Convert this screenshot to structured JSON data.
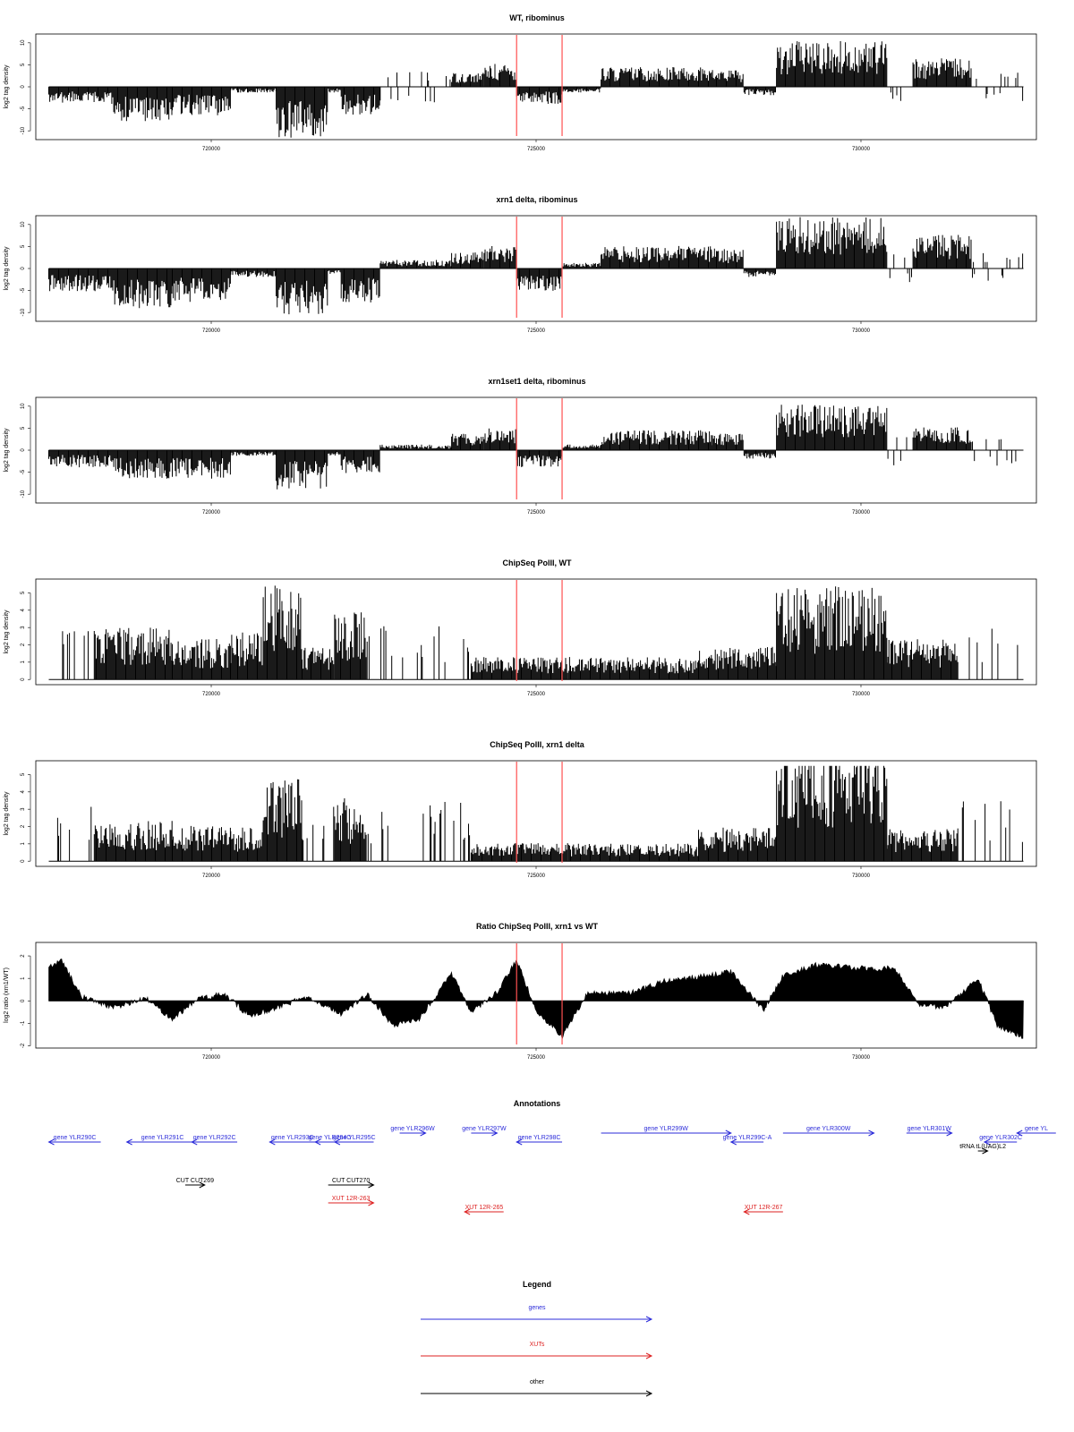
{
  "chart_data": [
    {
      "type": "bar",
      "title": "WT, ribominus",
      "ylabel": "log2 tag density",
      "xlim": [
        717300,
        732700
      ],
      "ylim": [
        -12,
        12
      ],
      "xticks": [
        720000,
        725000,
        730000
      ],
      "yticks": [
        -10,
        -5,
        0,
        5,
        10
      ],
      "vlines": [
        724700,
        725400
      ],
      "segments": [
        {
          "x0": 717500,
          "x1": 718500,
          "v": -3
        },
        {
          "x0": 718500,
          "x1": 719400,
          "v": -6
        },
        {
          "x0": 719400,
          "x1": 720300,
          "v": -5
        },
        {
          "x0": 720300,
          "x1": 721000,
          "v": -1
        },
        {
          "x0": 721000,
          "x1": 721800,
          "v": -9
        },
        {
          "x0": 721800,
          "x1": 722000,
          "v": -1
        },
        {
          "x0": 722000,
          "x1": 722600,
          "v": -5
        },
        {
          "x0": 722600,
          "x1": 723700,
          "v": -0.5
        },
        {
          "x0": 723700,
          "x1": 724200,
          "v": 2.5
        },
        {
          "x0": 724200,
          "x1": 724700,
          "v": 4
        },
        {
          "x0": 724700,
          "x1": 725400,
          "v": -3
        },
        {
          "x0": 725400,
          "x1": 726000,
          "v": -1
        },
        {
          "x0": 726000,
          "x1": 727700,
          "v": 3.5
        },
        {
          "x0": 727700,
          "x1": 728200,
          "v": 3
        },
        {
          "x0": 728200,
          "x1": 728700,
          "v": -1.5
        },
        {
          "x0": 728700,
          "x1": 730400,
          "v": 8
        },
        {
          "x0": 730400,
          "x1": 730800,
          "v": 0
        },
        {
          "x0": 730800,
          "x1": 731700,
          "v": 5
        },
        {
          "x0": 731700,
          "x1": 732500,
          "v": 0
        }
      ]
    },
    {
      "type": "bar",
      "title": "xrn1 delta, ribominus",
      "ylabel": "log2 tag density",
      "xlim": [
        717300,
        732700
      ],
      "ylim": [
        -12,
        12
      ],
      "xticks": [
        720000,
        725000,
        730000
      ],
      "yticks": [
        -10,
        -5,
        0,
        5,
        10
      ],
      "vlines": [
        724700,
        725400
      ],
      "segments": [
        {
          "x0": 717500,
          "x1": 718500,
          "v": -4
        },
        {
          "x0": 718500,
          "x1": 719400,
          "v": -7
        },
        {
          "x0": 719400,
          "x1": 720300,
          "v": -6
        },
        {
          "x0": 720300,
          "x1": 721000,
          "v": -1.5
        },
        {
          "x0": 721000,
          "x1": 721800,
          "v": -8
        },
        {
          "x0": 721800,
          "x1": 722000,
          "v": -1
        },
        {
          "x0": 722000,
          "x1": 722600,
          "v": -6
        },
        {
          "x0": 722600,
          "x1": 723700,
          "v": 1.5
        },
        {
          "x0": 723700,
          "x1": 724200,
          "v": 3
        },
        {
          "x0": 724200,
          "x1": 724700,
          "v": 4
        },
        {
          "x0": 724700,
          "x1": 725400,
          "v": -4
        },
        {
          "x0": 725400,
          "x1": 726000,
          "v": 1
        },
        {
          "x0": 726000,
          "x1": 727700,
          "v": 4
        },
        {
          "x0": 727700,
          "x1": 728200,
          "v": 3.5
        },
        {
          "x0": 728200,
          "x1": 728700,
          "v": -1.5
        },
        {
          "x0": 728700,
          "x1": 730400,
          "v": 9
        },
        {
          "x0": 730400,
          "x1": 730800,
          "v": 0
        },
        {
          "x0": 730800,
          "x1": 731700,
          "v": 6
        },
        {
          "x0": 731700,
          "x1": 732500,
          "v": 0
        }
      ]
    },
    {
      "type": "bar",
      "title": "xrn1set1 delta, ribominus",
      "ylabel": "log2 tag density",
      "xlim": [
        717300,
        732700
      ],
      "ylim": [
        -12,
        12
      ],
      "xticks": [
        720000,
        725000,
        730000
      ],
      "yticks": [
        -10,
        -5,
        0,
        5,
        10
      ],
      "vlines": [
        724700,
        725400
      ],
      "segments": [
        {
          "x0": 717500,
          "x1": 718500,
          "v": -3
        },
        {
          "x0": 718500,
          "x1": 719400,
          "v": -5
        },
        {
          "x0": 719400,
          "x1": 720300,
          "v": -5
        },
        {
          "x0": 720300,
          "x1": 721000,
          "v": -1
        },
        {
          "x0": 721000,
          "x1": 721800,
          "v": -7
        },
        {
          "x0": 721800,
          "x1": 722000,
          "v": -1
        },
        {
          "x0": 722000,
          "x1": 722600,
          "v": -4
        },
        {
          "x0": 722600,
          "x1": 723700,
          "v": 1
        },
        {
          "x0": 723700,
          "x1": 724200,
          "v": 3
        },
        {
          "x0": 724200,
          "x1": 724700,
          "v": 4
        },
        {
          "x0": 724700,
          "x1": 725400,
          "v": -3
        },
        {
          "x0": 725400,
          "x1": 726000,
          "v": 1
        },
        {
          "x0": 726000,
          "x1": 727700,
          "v": 3.5
        },
        {
          "x0": 727700,
          "x1": 728200,
          "v": 3
        },
        {
          "x0": 728200,
          "x1": 728700,
          "v": -1.5
        },
        {
          "x0": 728700,
          "x1": 730400,
          "v": 8
        },
        {
          "x0": 730400,
          "x1": 730800,
          "v": 0
        },
        {
          "x0": 730800,
          "x1": 731700,
          "v": 4
        },
        {
          "x0": 731700,
          "x1": 732500,
          "v": 0
        }
      ]
    },
    {
      "type": "bar",
      "title": "ChipSeq PolII, WT",
      "ylabel": "log2 tag density",
      "xlim": [
        717300,
        732700
      ],
      "ylim": [
        -0.3,
        5.8
      ],
      "xticks": [
        720000,
        725000,
        730000
      ],
      "yticks": [
        0,
        1,
        2,
        3,
        4,
        5
      ],
      "vlines": [
        724700,
        725400
      ],
      "segments": [
        {
          "x0": 717500,
          "x1": 718200,
          "v": 0.5
        },
        {
          "x0": 718200,
          "x1": 719400,
          "v": 2.3
        },
        {
          "x0": 719400,
          "x1": 720300,
          "v": 1.8
        },
        {
          "x0": 720300,
          "x1": 720800,
          "v": 2.1
        },
        {
          "x0": 720800,
          "x1": 721400,
          "v": 4.2
        },
        {
          "x0": 721400,
          "x1": 721900,
          "v": 1.5
        },
        {
          "x0": 721900,
          "x1": 722400,
          "v": 3
        },
        {
          "x0": 722400,
          "x1": 724000,
          "v": 0.3
        },
        {
          "x0": 724000,
          "x1": 725500,
          "v": 1
        },
        {
          "x0": 725500,
          "x1": 727500,
          "v": 1
        },
        {
          "x0": 727500,
          "x1": 728700,
          "v": 1.5
        },
        {
          "x0": 728700,
          "x1": 730400,
          "v": 4.2
        },
        {
          "x0": 730400,
          "x1": 731500,
          "v": 1.8
        },
        {
          "x0": 731500,
          "x1": 732500,
          "v": 0.5
        }
      ]
    },
    {
      "type": "bar",
      "title": "ChipSeq PolII, xrn1 delta",
      "ylabel": "log2 tag density",
      "xlim": [
        717300,
        732700
      ],
      "ylim": [
        -0.3,
        5.8
      ],
      "xticks": [
        720000,
        725000,
        730000
      ],
      "yticks": [
        0,
        1,
        2,
        3,
        4,
        5
      ],
      "vlines": [
        724700,
        725400
      ],
      "segments": [
        {
          "x0": 717500,
          "x1": 718200,
          "v": 0.2
        },
        {
          "x0": 718200,
          "x1": 719400,
          "v": 1.8
        },
        {
          "x0": 719400,
          "x1": 720300,
          "v": 1.6
        },
        {
          "x0": 720300,
          "x1": 720800,
          "v": 1.5
        },
        {
          "x0": 720800,
          "x1": 721400,
          "v": 3.8
        },
        {
          "x0": 721400,
          "x1": 721900,
          "v": 0.2
        },
        {
          "x0": 721900,
          "x1": 722400,
          "v": 2.8
        },
        {
          "x0": 722400,
          "x1": 724000,
          "v": 0.2
        },
        {
          "x0": 724000,
          "x1": 725500,
          "v": 0.8
        },
        {
          "x0": 725500,
          "x1": 727500,
          "v": 0.8
        },
        {
          "x0": 727500,
          "x1": 728700,
          "v": 1.5
        },
        {
          "x0": 728700,
          "x1": 730400,
          "v": 5.2
        },
        {
          "x0": 730400,
          "x1": 731500,
          "v": 1.5
        },
        {
          "x0": 731500,
          "x1": 732500,
          "v": 0.3
        }
      ]
    },
    {
      "type": "area",
      "title": "Ratio ChipSeq PolII, xrn1 vs WT",
      "ylabel": "log2 ratio (xrn1/WT)",
      "xlim": [
        717300,
        732700
      ],
      "ylim": [
        -2.1,
        2.6
      ],
      "xticks": [
        720000,
        725000,
        730000
      ],
      "yticks": [
        -2,
        -1,
        0,
        1,
        2
      ],
      "vlines": [
        724700,
        725400
      ],
      "x": [
        717500,
        717700,
        718000,
        718500,
        719000,
        719400,
        719800,
        720200,
        720600,
        721000,
        721500,
        722000,
        722400,
        722800,
        723200,
        723700,
        724000,
        724400,
        724700,
        725000,
        725400,
        725800,
        726400,
        727000,
        727600,
        728000,
        728500,
        728800,
        729300,
        729800,
        730200,
        730500,
        730900,
        731300,
        731800,
        732100,
        732500
      ],
      "y": [
        1.5,
        1.8,
        0.2,
        -0.3,
        0.1,
        -0.8,
        0.1,
        0.3,
        -0.7,
        -0.3,
        0.2,
        -0.6,
        0.3,
        -1.1,
        -0.8,
        1.2,
        -0.5,
        0.4,
        1.8,
        -0.4,
        -1.6,
        0.4,
        0.3,
        0.9,
        1.1,
        1.3,
        -0.4,
        1.1,
        1.6,
        1.5,
        1.4,
        1.5,
        -0.2,
        -0.3,
        1.0,
        -1.1,
        -1.6
      ]
    }
  ],
  "annotations": {
    "title": "Annotations",
    "genes": [
      {
        "label": "gene YLR290C",
        "x0": 717500,
        "x1": 718300,
        "dir": "left",
        "row": 1
      },
      {
        "label": "gene YLR291C",
        "x0": 718700,
        "x1": 719800,
        "dir": "left",
        "row": 1
      },
      {
        "label": "gene YLR292C",
        "x0": 719700,
        "x1": 720400,
        "dir": "left",
        "row": 1
      },
      {
        "label": "gene YLR293C",
        "x0": 720900,
        "x1": 721600,
        "dir": "left",
        "row": 1
      },
      {
        "label": "gene YLR294C",
        "x0": 721600,
        "x1": 722050,
        "dir": "left",
        "row": 1
      },
      {
        "label": "gene YLR295C",
        "x0": 721900,
        "x1": 722500,
        "dir": "left",
        "row": 1
      },
      {
        "label": "gene YLR296W",
        "x0": 722900,
        "x1": 723300,
        "dir": "right",
        "row": 0
      },
      {
        "label": "gene YLR297W",
        "x0": 724000,
        "x1": 724400,
        "dir": "right",
        "row": 0
      },
      {
        "label": "gene YLR298C",
        "x0": 724700,
        "x1": 725400,
        "dir": "left",
        "row": 1
      },
      {
        "label": "gene YLR299W",
        "x0": 726000,
        "x1": 728000,
        "dir": "right",
        "row": 0
      },
      {
        "label": "gene YLR299C-A",
        "x0": 728000,
        "x1": 728500,
        "dir": "left",
        "row": 1
      },
      {
        "label": "gene YLR300W",
        "x0": 728800,
        "x1": 730200,
        "dir": "right",
        "row": 0
      },
      {
        "label": "gene YLR301W",
        "x0": 730700,
        "x1": 731400,
        "dir": "right",
        "row": 0
      },
      {
        "label": "gene YLR302C",
        "x0": 731900,
        "x1": 732400,
        "dir": "left",
        "row": 1
      },
      {
        "label": "gene YL",
        "x0": 732400,
        "x1": 733000,
        "dir": "left",
        "row": 0
      }
    ],
    "others": [
      {
        "label": "tRNA tL(UAG)L2",
        "x0": 731800,
        "x1": 731950,
        "dir": "right",
        "row": 2
      },
      {
        "label": "CUT CUT269",
        "x0": 719600,
        "x1": 719900,
        "dir": "right",
        "row": 4
      },
      {
        "label": "CUT CUT270",
        "x0": 721800,
        "x1": 722500,
        "dir": "right",
        "row": 4
      }
    ],
    "xuts": [
      {
        "label": "XUT 12R-263",
        "x0": 721800,
        "x1": 722500,
        "dir": "right",
        "row": 5
      },
      {
        "label": "XUT 12R-265",
        "x0": 723900,
        "x1": 724500,
        "dir": "left",
        "row": 6
      },
      {
        "label": "XUT 12R-267",
        "x0": 728200,
        "x1": 728800,
        "dir": "left",
        "row": 6
      }
    ]
  },
  "legend": {
    "title": "Legend",
    "items": [
      {
        "label": "genes",
        "color": "#2b2bd9"
      },
      {
        "label": "XUTs",
        "color": "#dd2222"
      },
      {
        "label": "other",
        "color": "#000000"
      }
    ]
  },
  "colors": {
    "gene": "#2b2bd9",
    "xut": "#dd2222",
    "other": "#000000",
    "vline": "#ff5050"
  }
}
